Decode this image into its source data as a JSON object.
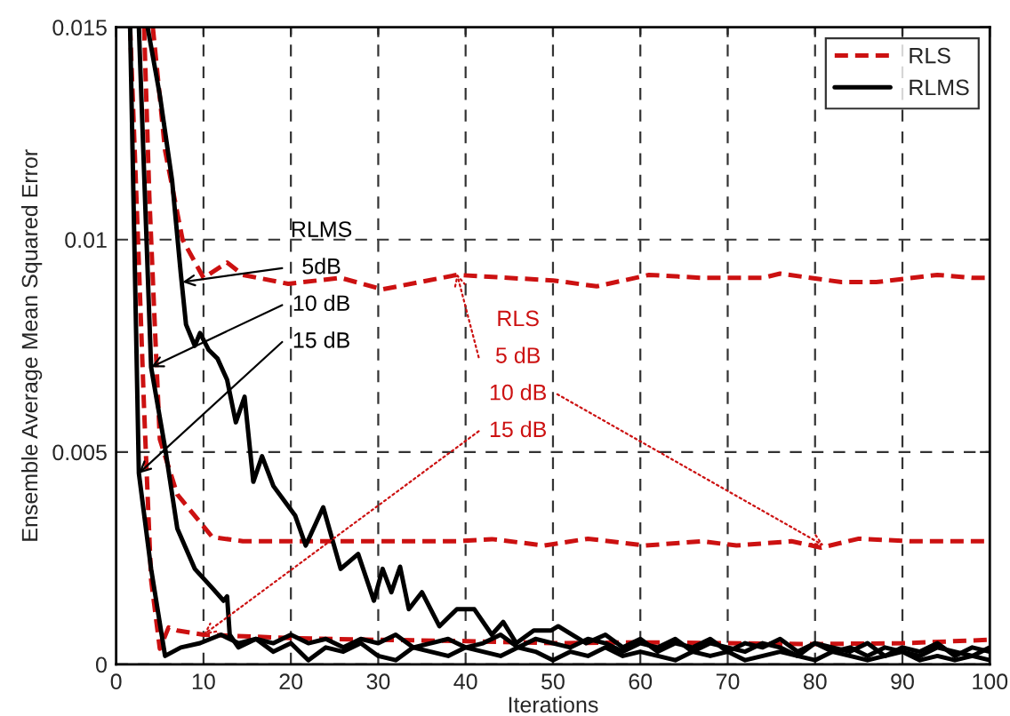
{
  "chart_data": {
    "type": "line",
    "xlabel": "Iterations",
    "ylabel": "Ensemble Average Mean Squared Error",
    "xlim": [
      0,
      100
    ],
    "ylim": [
      0,
      0.015
    ],
    "xticks": [
      0,
      10,
      20,
      30,
      40,
      50,
      60,
      70,
      80,
      90,
      100
    ],
    "yticks": [
      0,
      0.005,
      0.01,
      0.015
    ],
    "grid": true,
    "legend": "top right",
    "annotations": [
      "RLMS",
      {
        "text": "5dB",
        "x": 7.6,
        "y": 0.009
      },
      {
        "text": "10 dB",
        "x": 4,
        "y": 0.007
      },
      {
        "text": "15 dB",
        "x": 2.6,
        "y": 0.0045
      },
      "RLS",
      {
        "text": "5 dB",
        "x": 39,
        "y": 0.0092
      },
      {
        "text": "10 dB",
        "x": 81,
        "y": 0.0028
      },
      {
        "text": "15 dB",
        "x": 10,
        "y": 0.0007
      }
    ],
    "series": [
      {
        "name": "RLS",
        "color": "#cc1111",
        "line_style": "dashed",
        "x": [
          4.2,
          5.6,
          7.6,
          10,
          12.7,
          14.5,
          19.7,
          25.7,
          30.5,
          39,
          50,
          55,
          61,
          67,
          74,
          76,
          83,
          87,
          94,
          98,
          100
        ],
        "values": [
          0.015,
          0.0121,
          0.01,
          0.0091,
          0.00946,
          0.00917,
          0.00896,
          0.0091,
          0.00883,
          0.00917,
          0.00904,
          0.0089,
          0.00917,
          0.0091,
          0.0091,
          0.0092,
          0.009,
          0.009,
          0.00917,
          0.0091,
          0.0091
        ]
      },
      {
        "color": "#cc1111",
        "line_style": "dashed",
        "x": [
          3.2,
          3.8,
          4.4,
          5,
          7,
          11,
          14.5,
          19.7,
          29,
          39,
          43,
          49,
          54,
          60.6,
          67,
          71,
          77.3,
          80.7,
          85,
          91,
          98,
          100
        ],
        "values": [
          0.015,
          0.011,
          0.0081,
          0.0053,
          0.004,
          0.003,
          0.0029,
          0.0029,
          0.0029,
          0.0029,
          0.00295,
          0.0028,
          0.00296,
          0.0028,
          0.0029,
          0.0028,
          0.0029,
          0.00275,
          0.00296,
          0.0029,
          0.0029,
          0.0029
        ]
      },
      {
        "color": "#cc1111",
        "line_style": "dashed",
        "x": [
          1.6,
          2.5,
          3.2,
          4,
          5,
          6,
          7,
          10,
          20,
          30,
          40,
          50,
          60,
          70,
          80,
          90,
          100
        ],
        "values": [
          0.015,
          0.01,
          0.006,
          0.002,
          0.00037,
          0.00087,
          0.0008,
          0.0007,
          0.00062,
          0.00058,
          0.00055,
          0.0005,
          0.00052,
          0.0005,
          0.00048,
          0.0005,
          0.00058
        ]
      },
      {
        "name": "RLMS",
        "color": "#000000",
        "line_style": "solid",
        "x": [
          3.6,
          5,
          6.4,
          7.4,
          8,
          9,
          9.6,
          10.6,
          11.6,
          12.7,
          13.7,
          14.7,
          15.7,
          16.7,
          18,
          20.5,
          21.7,
          23.7,
          25.7,
          27.7,
          29.5,
          30.5,
          31.5,
          32.5,
          33.5,
          35,
          37,
          39,
          41,
          43,
          44.3,
          45.8,
          47.8,
          49.8,
          50.6,
          53.8,
          56,
          58,
          60,
          62,
          64,
          66,
          68,
          70,
          72,
          74,
          76,
          78,
          80,
          82,
          84,
          86,
          88,
          90,
          92,
          94,
          96,
          98,
          100
        ],
        "values": [
          0.015,
          0.0134,
          0.0114,
          0.0092,
          0.008,
          0.0075,
          0.0078,
          0.0074,
          0.0072,
          0.0067,
          0.0057,
          0.0063,
          0.0043,
          0.0049,
          0.0042,
          0.0035,
          0.0028,
          0.0037,
          0.00225,
          0.0026,
          0.0015,
          0.00225,
          0.0017,
          0.0023,
          0.0013,
          0.0017,
          0.0009,
          0.0013,
          0.0013,
          0.0007,
          0.001,
          0.0005,
          0.0008,
          0.0008,
          0.0009,
          0.0005,
          0.0007,
          0.0004,
          0.0006,
          0.0003,
          0.0005,
          0.0004,
          0.0006,
          0.0003,
          0.0005,
          0.0004,
          0.0006,
          0.0003,
          0.0005,
          0.0004,
          0.0003,
          0.0005,
          0.0002,
          0.0004,
          0.0003,
          0.0005,
          0.0002,
          0.0004,
          0.0003
        ]
      },
      {
        "color": "#000000",
        "line_style": "solid",
        "x": [
          2.6,
          4,
          5.6,
          7,
          9,
          11,
          12.3,
          12.7,
          13,
          14,
          16,
          18,
          20,
          22,
          24,
          26,
          28,
          30,
          32,
          34,
          36,
          38,
          40,
          42,
          44,
          46,
          48,
          50,
          52,
          54,
          56,
          58,
          60,
          62,
          64,
          66,
          68,
          70,
          72,
          74,
          76,
          78,
          80,
          82,
          84,
          86,
          88,
          90,
          92,
          94,
          96,
          98,
          100
        ],
        "values": [
          0.015,
          0.007,
          0.0051,
          0.0032,
          0.00225,
          0.0018,
          0.0015,
          0.0016,
          0.0007,
          0.0004,
          0.0006,
          0.0005,
          0.0007,
          0.0005,
          0.0006,
          0.0004,
          0.0006,
          0.0005,
          0.0007,
          0.0004,
          0.0005,
          0.0006,
          0.0004,
          0.0005,
          0.0007,
          0.0004,
          0.0006,
          0.0005,
          0.0004,
          0.0006,
          0.0005,
          0.0003,
          0.0005,
          0.0004,
          0.0006,
          0.0003,
          0.0005,
          0.0004,
          0.0003,
          0.0005,
          0.0004,
          0.0002,
          0.0005,
          0.0003,
          0.0004,
          0.0002,
          0.0004,
          0.0003,
          0.0002,
          0.0004,
          0.0003,
          0.0002,
          0.0004
        ]
      },
      {
        "color": "#000000",
        "line_style": "solid",
        "x": [
          1.6,
          2.6,
          4,
          5.6,
          7.4,
          9.6,
          12,
          14,
          16,
          18,
          20,
          22,
          24,
          26,
          28,
          30,
          32,
          34,
          36,
          38,
          40,
          42,
          44,
          46,
          48,
          50,
          52,
          54,
          56,
          58,
          60,
          62,
          64,
          66,
          68,
          70,
          72,
          74,
          76,
          78,
          80,
          82,
          84,
          86,
          88,
          90,
          92,
          94,
          96,
          98,
          100
        ],
        "values": [
          0.015,
          0.0045,
          0.00225,
          0.0002,
          0.0004,
          0.0005,
          0.0007,
          0.0005,
          0.0006,
          0.0003,
          0.0005,
          0.0001,
          0.0004,
          0.0003,
          0.0005,
          0.0002,
          0.0001,
          0.0004,
          0.0003,
          0.0002,
          0.0004,
          0.0003,
          0.0002,
          0.0004,
          0.0003,
          0.0001,
          0.0003,
          0.0002,
          0.0004,
          0.0002,
          0.0003,
          0.0002,
          0.0001,
          0.0003,
          0.0002,
          0.0003,
          0.0001,
          0.0002,
          0.0003,
          0.0002,
          0.0001,
          0.0003,
          0.0002,
          0.0001,
          0.0002,
          0.0003,
          0.0001,
          0.0002,
          0.0001,
          0.0002,
          0.0001
        ]
      }
    ]
  }
}
